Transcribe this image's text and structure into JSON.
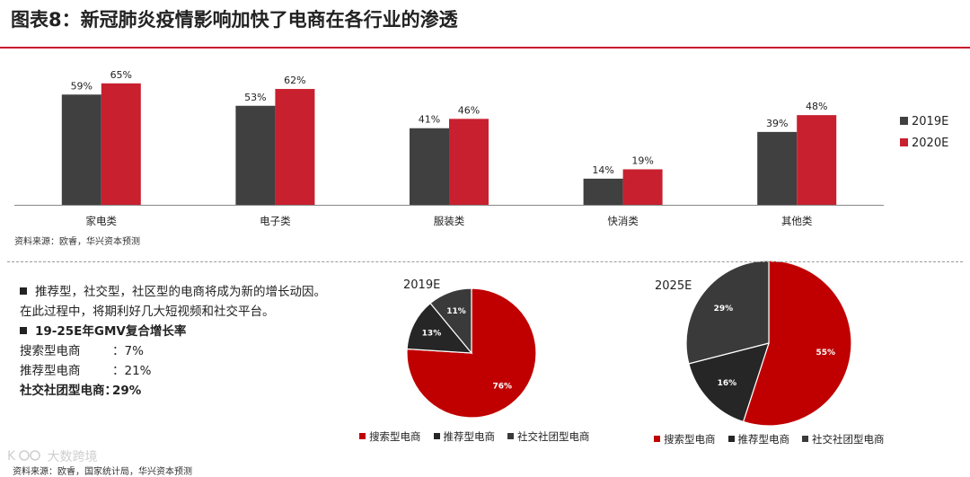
{
  "title": "图表8：新冠肺炎疫情影响加快了电商在各行业的渗透",
  "colors": {
    "dark": "#404040",
    "red": "#c8202f",
    "pie_red": "#c00000",
    "pie_dark": "#262626",
    "pie_grey": "#3a3a3a"
  },
  "bar_source": "资料来源：欧睿，华兴资本预测",
  "bottom_source": "资料来源：欧睿，国家统计局，华兴资本预测",
  "watermark": "大数跨境",
  "text_panel": {
    "line1": "推荐型，社交型，社区型的电商将成为新的增长动因。",
    "line2": "在此过程中，将期利好几大短视频和社交平台。",
    "growth_title": "19-25E年GMV复合增长率",
    "rows": [
      {
        "label": "搜索型电商",
        "value": "：7%"
      },
      {
        "label": "推荐型电商",
        "value": "：21%"
      },
      {
        "label": "社交社团型电商：",
        "value": "29%"
      }
    ]
  },
  "chart_data": [
    {
      "type": "bar",
      "categories": [
        "家电类",
        "电子类",
        "服装类",
        "快消类",
        "其他类"
      ],
      "series": [
        {
          "name": "2019E",
          "values": [
            59,
            53,
            41,
            14,
            39
          ],
          "labels": [
            "59%",
            "53%",
            "41%",
            "14%",
            "39%"
          ],
          "color": "#404040"
        },
        {
          "name": "2020E",
          "values": [
            65,
            62,
            46,
            19,
            48
          ],
          "labels": [
            "65%",
            "62%",
            "46%",
            "19%",
            "48%"
          ],
          "color": "#c8202f"
        }
      ],
      "ylim": [
        0,
        70
      ],
      "legend": "right"
    },
    {
      "type": "pie",
      "title": "2019E",
      "labels": [
        "搜索型电商",
        "推荐型电商",
        "社交社团型电商"
      ],
      "values": [
        76,
        13,
        11
      ],
      "value_labels": [
        "76%",
        "13%",
        "11%"
      ],
      "colors": [
        "#c00000",
        "#262626",
        "#3a3a3a"
      ],
      "legend": "bottom"
    },
    {
      "type": "pie",
      "title": "2025E",
      "labels": [
        "搜索型电商",
        "推荐型电商",
        "社交社团型电商"
      ],
      "values": [
        55,
        16,
        29
      ],
      "value_labels": [
        "55%",
        "16%",
        "29%"
      ],
      "colors": [
        "#c00000",
        "#262626",
        "#3a3a3a"
      ],
      "legend": "bottom"
    }
  ]
}
